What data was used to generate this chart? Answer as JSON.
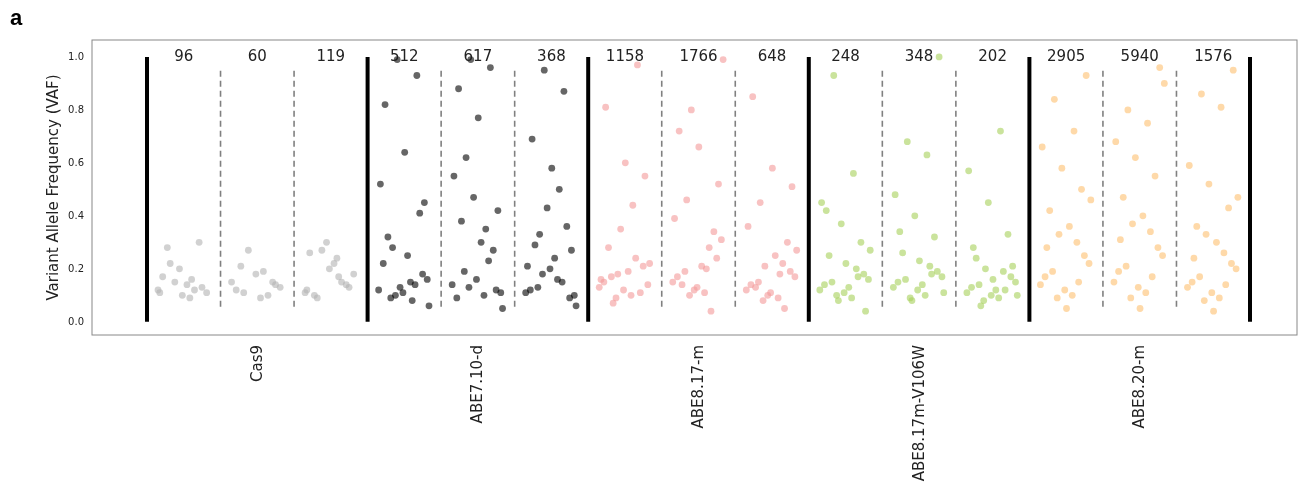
{
  "chart_data": {
    "type": "scatter",
    "ylabel": "Variant Allele Frequency (VAF)",
    "categories": [
      null,
      "Cas9",
      null,
      null,
      "ABE7.10-d",
      null,
      null,
      "ABE8.17-m",
      null,
      null,
      "ABE8.17m-V106W",
      null,
      null,
      "ABE8.20-m",
      null
    ],
    "ylim": [
      -0.05,
      1.064
    ],
    "yticks": [
      {
        "value": 0,
        "label": "0.0"
      },
      {
        "value": 0.2,
        "label": "0.2"
      },
      {
        "value": 0.4,
        "label": "0.4"
      },
      {
        "value": 0.6,
        "label": "0.6"
      },
      {
        "value": 0.8,
        "label": "0.8"
      },
      {
        "value": 1,
        "label": "1.0"
      }
    ],
    "grid": false,
    "marker": "circle",
    "series": [
      {
        "colors": [
          "#b3b3b3",
          "#b3b3b3",
          "#b3b3b3",
          "#000000",
          "#000000",
          "#000000",
          "#f4999a",
          "#f4999a",
          "#f4999a",
          "#a6d05a",
          "#a6d05a",
          "#a6d05a",
          "#fdbf6f",
          "#fdbf6f",
          "#fdbf6f"
        ],
        "values": [
          0.12,
          0.15,
          0.11,
          0.12,
          0.14,
          0.11,
          0.13,
          0.15,
          0.12,
          0.12,
          0.13,
          0.11,
          0.14,
          0.15,
          0.13
        ]
      },
      {
        "colors": [
          "#b3b3b3",
          "#b3b3b3",
          "#b3b3b3",
          "#000000",
          "#000000",
          "#000000",
          "#f4999a",
          "#f4999a",
          "#f4999a",
          "#a6d05a",
          "#a6d05a",
          "#a6d05a",
          "#fdbf6f",
          "#fdbf6f",
          "#fdbf6f"
        ],
        "values": [
          0.09,
          0.19,
          0.24,
          0.15,
          0.1,
          0.16,
          0.1,
          0.11,
          0.09,
          0.09,
          0.1,
          0.09,
          0.1,
          0.11,
          0.09
        ]
      },
      {
        "colors": [
          "#b3b3b3",
          "#b3b3b3",
          "#b3b3b3",
          "#000000",
          "#000000",
          "#000000",
          "#f4999a",
          "#f4999a",
          "#f4999a",
          "#a6d05a",
          "#a6d05a",
          "#a6d05a",
          "#fdbf6f",
          "#fdbf6f",
          "#fdbf6f"
        ],
        "values": [
          0.22,
          0.11,
          0.09,
          0.09,
          0.19,
          0.13,
          0.17,
          0.19,
          0.15,
          0.15,
          0.16,
          0.14,
          0.19,
          0.21,
          0.17
        ]
      },
      {
        "colors": [
          "#b3b3b3",
          "#b3b3b3",
          "#b3b3b3",
          "#000000",
          "#000000",
          "#000000",
          "#f4999a",
          "#f4999a",
          "#f4999a",
          "#a6d05a",
          "#a6d05a",
          "#a6d05a",
          "#fdbf6f",
          "#fdbf6f",
          "#fdbf6f"
        ],
        "values": [
          0.13,
          0.14,
          0.13,
          0.18,
          0.12,
          0.09,
          0.21,
          0.24,
          0.19,
          0.18,
          0.19,
          0.17,
          0.25,
          0.28,
          0.22
        ]
      },
      {
        "colors": [
          "#b3b3b3",
          "#b3b3b3",
          "#b3b3b3",
          "#000000",
          "#000000",
          "#000000",
          "#f4999a",
          "#f4999a",
          "#f4999a",
          "#a6d05a",
          "#a6d05a",
          "#a6d05a",
          "#fdbf6f",
          "#fdbf6f",
          "#fdbf6f"
        ],
        "values": [
          0.1,
          0.18,
          0.2,
          0.11,
          0.16,
          0.2,
          0.12,
          0.13,
          0.11,
          0.11,
          0.12,
          0.1,
          0.12,
          0.13,
          0.11
        ]
      },
      {
        "colors": [
          "#b3b3b3",
          "#b3b3b3",
          "#b3b3b3",
          "#000000",
          "#000000",
          "#000000",
          "#f4999a",
          "#f4999a",
          "#f4999a",
          "#a6d05a",
          "#a6d05a",
          "#a6d05a",
          "#fdbf6f",
          "#fdbf6f",
          "#fdbf6f"
        ],
        "values": [
          0.17,
          0.12,
          0.26,
          0.22,
          0.09,
          0.12,
          0.15,
          0.17,
          0.14,
          0.14,
          0.15,
          0.13,
          0.17,
          0.19,
          0.15
        ]
      },
      {
        "colors": [
          "#b3b3b3",
          "#b3b3b3",
          "#b3b3b3",
          "#000000",
          "#000000",
          "#000000",
          "#f4999a",
          "#f4999a",
          "#f4999a",
          "#a6d05a",
          "#a6d05a",
          "#a6d05a",
          "#fdbf6f",
          "#fdbf6f",
          "#fdbf6f"
        ],
        "values": [
          0.12,
          0.1,
          0.15,
          0.14,
          0.23,
          0.15,
          0.24,
          0.28,
          0.22,
          0.2,
          0.21,
          0.19,
          0.3,
          0.34,
          0.26
        ]
      },
      {
        "colors": [
          "#b3b3b3",
          "#b3b3b3",
          "#b3b3b3",
          "#000000",
          "#000000",
          "#000000",
          "#f4999a",
          "#f4999a",
          "#f4999a",
          "#a6d05a",
          "#a6d05a",
          "#a6d05a",
          "#fdbf6f",
          "#fdbf6f",
          "#fdbf6f"
        ],
        "values": [
          0.15,
          0.27,
          0.27,
          0.1,
          0.13,
          0.18,
          0.09,
          0.1,
          0.08,
          0.1,
          0.09,
          0.08,
          0.09,
          0.09,
          0.08
        ]
      },
      {
        "colors": [
          "#b3b3b3",
          "#b3b3b3",
          "#b3b3b3",
          "#000000",
          "#000000",
          "#000000",
          "#f4999a",
          "#f4999a",
          "#f4999a",
          "#a6d05a",
          "#a6d05a",
          "#a6d05a",
          "#fdbf6f",
          "#fdbf6f",
          "#fdbf6f"
        ],
        "values": [
          0.11,
          0.13,
          0.18,
          0.16,
          0.11,
          0.1,
          0.14,
          0.31,
          0.17,
          0.16,
          0.17,
          0.15,
          0.22,
          0.25,
          0.2
        ]
      },
      {
        "colors": [
          "#b3b3b3",
          "#b3b3b3",
          "#b3b3b3",
          "#000000",
          "#000000",
          "#000000",
          "#f4999a",
          "#f4999a",
          "#f4999a",
          "#a6d05a",
          "#a6d05a",
          "#a6d05a",
          "#fdbf6f",
          "#fdbf6f",
          "#fdbf6f"
        ],
        "values": [
          0.14,
          0.09,
          0.22,
          0.25,
          0.3,
          0.24,
          0.19,
          0.21,
          0.25,
          0.13,
          0.14,
          0.12,
          0.36,
          0.4,
          0.3
        ]
      },
      {
        "colors": [
          "#b3b3b3",
          "#b3b3b3",
          "#b3b3b3",
          "#000000",
          "#000000",
          "#000000",
          "#f4999a",
          "#f4999a",
          "#f4999a",
          "#a6d05a",
          "#a6d05a",
          "#a6d05a",
          "#fdbf6f",
          "#fdbf6f",
          "#fdbf6f"
        ],
        "values": [
          0.28,
          0.21,
          0.1,
          0.32,
          0.38,
          0.29,
          0.28,
          0.14,
          0.13,
          0.25,
          0.26,
          0.24,
          0.42,
          0.47,
          0.36
        ]
      },
      {
        "colors": [
          "#b3b3b3",
          "#b3b3b3",
          "#b3b3b3",
          "#000000",
          "#000000",
          "#000000",
          "#f4999a",
          "#f4999a",
          "#f4999a",
          "#a6d05a",
          "#a6d05a",
          "#a6d05a",
          "#fdbf6f",
          "#fdbf6f",
          "#fdbf6f"
        ],
        "values": [
          0.3,
          0.15,
          0.14,
          0.41,
          0.27,
          0.36,
          0.11,
          0.34,
          0.3,
          0.3,
          0.32,
          0.33,
          0.5,
          0.55,
          0.43
        ]
      },
      {
        "colors": [
          "#b3b3b3",
          null,
          "#b3b3b3",
          "#000000",
          "#000000",
          "#000000",
          "#f4999a",
          "#f4999a",
          "#f4999a",
          "#a6d05a",
          "#a6d05a",
          "#a6d05a",
          "#fdbf6f",
          "#fdbf6f",
          "#fdbf6f"
        ],
        "values": [
          0.2,
          null,
          0.3,
          0.13,
          0.47,
          0.43,
          0.35,
          0.12,
          0.1,
          0.37,
          0.4,
          0.45,
          0.58,
          0.62,
          0.52
        ]
      },
      {
        "colors": [
          "#b3b3b3",
          null,
          "#b3b3b3",
          "#000000",
          "#000000",
          "#000000",
          "#f4999a",
          "#f4999a",
          "#f4999a",
          "#a6d05a",
          "#a6d05a",
          "#a6d05a",
          "#fdbf6f",
          "#fdbf6f",
          "#fdbf6f"
        ],
        "values": [
          0.11,
          null,
          0.12,
          0.52,
          0.55,
          0.21,
          0.16,
          0.39,
          0.36,
          0.45,
          0.48,
          0.57,
          0.66,
          0.68,
          0.59
        ]
      },
      {
        "colors": [
          "#b3b3b3",
          null,
          "#b3b3b3",
          "#000000",
          "#000000",
          "#000000",
          "#f4999a",
          "#f4999a",
          "#f4999a",
          "#a6d05a",
          "#a6d05a",
          "#a6d05a",
          "#fdbf6f",
          "#fdbf6f",
          "#fdbf6f"
        ],
        "values": [
          0.16,
          null,
          0.17,
          0.08,
          0.35,
          0.5,
          0.44,
          0.2,
          0.18,
          0.56,
          0.63,
          0.72,
          0.72,
          0.75,
          0.81
        ]
      },
      {
        "colors": [
          null,
          null,
          null,
          "#000000",
          "#000000",
          "#000000",
          "#f4999a",
          "#f4999a",
          "#f4999a",
          "#a6d05a",
          "#a6d05a",
          "#a6d05a",
          "#fdbf6f",
          "#fdbf6f",
          "#fdbf6f"
        ],
        "values": [
          null,
          null,
          null,
          0.28,
          0.62,
          0.33,
          0.07,
          0.46,
          0.45,
          0.93,
          0.68,
          0.06,
          0.84,
          0.8,
          0.86
        ]
      },
      {
        "colors": [
          null,
          null,
          null,
          "#000000",
          "#000000",
          "#000000",
          "#f4999a",
          "#f4999a",
          "#f4999a",
          "#a6d05a",
          "#a6d05a",
          "#a6d05a",
          "#fdbf6f",
          "#fdbf6f",
          "#fdbf6f"
        ],
        "values": [
          null,
          null,
          null,
          0.45,
          0.42,
          0.27,
          0.55,
          0.52,
          0.51,
          0.04,
          1.0,
          0.21,
          0.93,
          0.96,
          0.95
        ]
      },
      {
        "colors": [
          null,
          null,
          null,
          "#000000",
          "#000000",
          "#000000",
          "#f4999a",
          "#f4999a",
          "#f4999a",
          "#a6d05a",
          "#a6d05a",
          "#a6d05a",
          "#fdbf6f",
          "#fdbf6f",
          "#fdbf6f"
        ],
        "values": [
          null,
          null,
          null,
          0.64,
          0.77,
          0.58,
          0.6,
          0.66,
          0.58,
          0.22,
          0.23,
          0.16,
          0.05,
          0.05,
          0.04
        ]
      },
      {
        "colors": [
          null,
          null,
          null,
          "#000000",
          "#000000",
          "#000000",
          "#f4999a",
          "#f4999a",
          "#f4999a",
          "#a6d05a",
          "#a6d05a",
          "#a6d05a",
          "#fdbf6f",
          "#fdbf6f",
          "#fdbf6f"
        ],
        "values": [
          null,
          null,
          null,
          0.82,
          0.88,
          0.69,
          0.81,
          0.72,
          0.85,
          0.42,
          0.34,
          0.28,
          0.28,
          0.31,
          0.24
        ]
      },
      {
        "colors": [
          null,
          null,
          null,
          "#000000",
          "#000000",
          "#000000",
          "#f4999a",
          "#f4999a",
          "#f4999a",
          "#a6d05a",
          "#a6d05a",
          "#a6d05a",
          "#fdbf6f",
          "#fdbf6f",
          "#fdbf6f"
        ],
        "values": [
          null,
          null,
          null,
          0.93,
          0.96,
          0.87,
          0.97,
          0.04,
          0.05,
          0.17,
          0.18,
          0.12,
          0.15,
          0.17,
          0.14
        ]
      },
      {
        "colors": [
          null,
          null,
          null,
          "#000000",
          "#000000",
          "#000000",
          "#f4999a",
          "#f4999a",
          "#f4999a",
          "#a6d05a",
          "#a6d05a",
          "#a6d05a",
          "#fdbf6f",
          "#fdbf6f",
          "#fdbf6f"
        ],
        "values": [
          null,
          null,
          null,
          0.99,
          0.99,
          0.95,
          0.18,
          0.8,
          0.21,
          0.08,
          0.08,
          0.2,
          0.33,
          0.37,
          0.33
        ]
      },
      {
        "colors": [
          null,
          null,
          null,
          "#000000",
          "#000000",
          "#000000",
          "#f4999a",
          "#f4999a",
          "#f4999a",
          "#a6d05a",
          "#a6d05a",
          "#a6d05a",
          "#fdbf6f",
          "#fdbf6f",
          "#fdbf6f"
        ],
        "values": [
          null,
          null,
          null,
          0.06,
          0.05,
          0.06,
          0.22,
          0.99,
          0.27,
          0.27,
          0.11,
          0.1,
          0.46,
          0.9,
          0.47
        ]
      }
    ],
    "annotations": [
      "a",
      "96",
      "60",
      "119",
      "512",
      "617",
      "368",
      "1158",
      "1766",
      "648",
      "248",
      "348",
      "202",
      "2905",
      "5940",
      "1576"
    ]
  }
}
